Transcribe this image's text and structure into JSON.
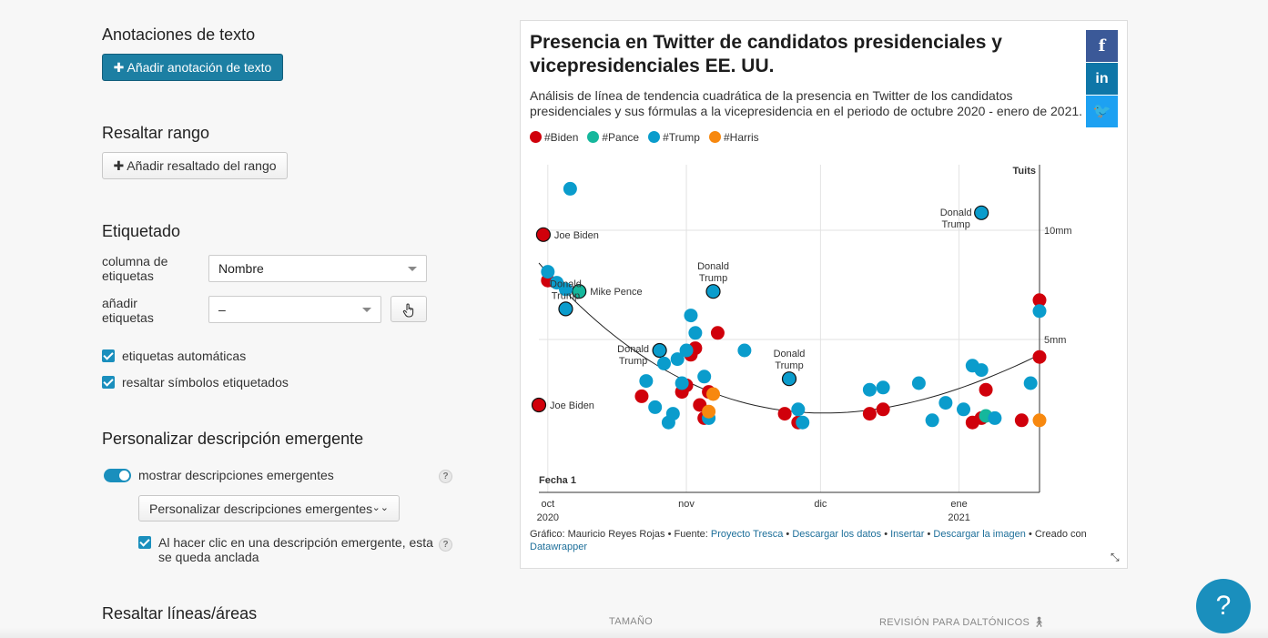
{
  "sections": {
    "text_annotations": {
      "title": "Anotaciones de texto",
      "add_button": "✚ Añadir anotación de texto"
    },
    "highlight_range": {
      "title": "Resaltar rango",
      "add_button": "✚ Añadir resaltado del rango"
    },
    "labeling": {
      "title": "Etiquetado",
      "label_column_label": "columna de etiquetas",
      "label_column_value": "Nombre",
      "add_labels_label": "añadir etiquetas",
      "add_labels_value": "–",
      "auto_labels": "etiquetas automáticas",
      "highlight_labeled": "resaltar símbolos etiquetados"
    },
    "tooltips": {
      "title": "Personalizar descripción emergente",
      "show_tooltips": "mostrar descripciones emergentes",
      "customize_button": "Personalizar descripciones emergentes",
      "sticky_label": "Al hacer clic en una descripción emergente, esta se queda anclada",
      "help": "?"
    },
    "highlight_lines": {
      "title": "Resaltar líneas/áreas"
    },
    "size_label": "TAMAÑO",
    "colorblind_label": "REVISIÓN PARA DALTÓNICOS"
  },
  "chart": {
    "title": "Presencia en Twitter de candidatos presidenciales y vicepresidenciales EE. UU.",
    "description": "Análisis de línea de tendencia cuadrática de la presencia en Twitter de los candidatos presidenciales y sus fórmulas a la vicepresidencia en el periodo de octubre 2020 - enero de 2021.",
    "social": {
      "facebook": "f",
      "linkedin": "in",
      "twitter": "🐦"
    },
    "footer": {
      "prefix": "Gráfico: Mauricio Reyes Rojas • Fuente: ",
      "source_link": "Proyecto Tresca",
      "download_data": "Descargar los datos",
      "embed": "Insertar",
      "download_image": "Descargar la imagen",
      "created_with": "Creado con",
      "datawrapper": "Datawrapper"
    }
  },
  "chart_data": {
    "type": "scatter",
    "xlabel": "Fecha 1",
    "ylabel": "Tuits",
    "x_ticks": [
      {
        "label": "oct",
        "sub": "2020",
        "date": "2020-10-01"
      },
      {
        "label": "nov",
        "sub": "",
        "date": "2020-11-01"
      },
      {
        "label": "dic",
        "sub": "",
        "date": "2020-12-01"
      },
      {
        "label": "ene",
        "sub": "2021",
        "date": "2021-01-01"
      }
    ],
    "y_ticks": [
      {
        "label": "5mm",
        "value": 5
      },
      {
        "label": "10mm",
        "value": 10
      }
    ],
    "xlim": [
      "2020-09-29",
      "2021-01-19"
    ],
    "ylim": [
      -2,
      13
    ],
    "legend": [
      {
        "name": "#Biden",
        "color": "#d0000b"
      },
      {
        "name": "#Pance",
        "color": "#15b79c"
      },
      {
        "name": "#Trump",
        "color": "#0a9ccc"
      },
      {
        "name": "#Harris",
        "color": "#f7880f"
      }
    ],
    "series": [
      {
        "name": "#Biden",
        "color": "#d0000b",
        "points": [
          {
            "x": "2020-09-30",
            "y": 9.8,
            "label": "Joe Biden"
          },
          {
            "x": "2020-09-29",
            "y": 2.0,
            "label": "Joe Biden"
          },
          {
            "x": "2020-10-01",
            "y": 7.7
          },
          {
            "x": "2020-10-22",
            "y": 2.4
          },
          {
            "x": "2020-10-31",
            "y": 2.6
          },
          {
            "x": "2020-11-01",
            "y": 2.9
          },
          {
            "x": "2020-11-02",
            "y": 4.3
          },
          {
            "x": "2020-11-03",
            "y": 4.6
          },
          {
            "x": "2020-11-04",
            "y": 2.0
          },
          {
            "x": "2020-11-05",
            "y": 1.4
          },
          {
            "x": "2020-11-06",
            "y": 2.6
          },
          {
            "x": "2020-11-08",
            "y": 5.3
          },
          {
            "x": "2020-11-23",
            "y": 1.6
          },
          {
            "x": "2020-11-26",
            "y": 1.2
          },
          {
            "x": "2020-12-12",
            "y": 1.6
          },
          {
            "x": "2020-12-15",
            "y": 1.8
          },
          {
            "x": "2021-01-04",
            "y": 1.2
          },
          {
            "x": "2021-01-06",
            "y": 1.4
          },
          {
            "x": "2021-01-07",
            "y": 2.7
          },
          {
            "x": "2021-01-15",
            "y": 1.3
          },
          {
            "x": "2021-01-19",
            "y": 6.8
          },
          {
            "x": "2021-01-19",
            "y": 4.2
          }
        ]
      },
      {
        "name": "#Pance",
        "color": "#15b79c",
        "points": [
          {
            "x": "2020-10-08",
            "y": 7.2,
            "label": "Mike Pence"
          },
          {
            "x": "2021-01-07",
            "y": 1.5
          }
        ]
      },
      {
        "name": "#Trump",
        "color": "#0a9ccc",
        "points": [
          {
            "x": "2020-10-05",
            "y": 6.4,
            "label": "Donald Trump"
          },
          {
            "x": "2020-10-26",
            "y": 4.5,
            "label": "Donald Trump"
          },
          {
            "x": "2020-11-07",
            "y": 7.2,
            "label": "Donald Trump"
          },
          {
            "x": "2020-11-24",
            "y": 3.2,
            "label": "Donald Trump"
          },
          {
            "x": "2021-01-06",
            "y": 10.8,
            "label": "Donald Trump"
          },
          {
            "x": "2020-10-06",
            "y": 11.9
          },
          {
            "x": "2020-10-01",
            "y": 8.1
          },
          {
            "x": "2020-10-03",
            "y": 7.6
          },
          {
            "x": "2020-10-05",
            "y": 7.3
          },
          {
            "x": "2020-10-23",
            "y": 3.1
          },
          {
            "x": "2020-10-25",
            "y": 1.9
          },
          {
            "x": "2020-10-27",
            "y": 3.9
          },
          {
            "x": "2020-10-28",
            "y": 1.2
          },
          {
            "x": "2020-10-29",
            "y": 1.6
          },
          {
            "x": "2020-10-30",
            "y": 4.1
          },
          {
            "x": "2020-10-31",
            "y": 3.0
          },
          {
            "x": "2020-11-01",
            "y": 4.5
          },
          {
            "x": "2020-11-02",
            "y": 6.1
          },
          {
            "x": "2020-11-03",
            "y": 5.3
          },
          {
            "x": "2020-11-05",
            "y": 3.3
          },
          {
            "x": "2020-11-06",
            "y": 1.4
          },
          {
            "x": "2020-11-14",
            "y": 4.5
          },
          {
            "x": "2020-11-26",
            "y": 1.8
          },
          {
            "x": "2020-11-27",
            "y": 1.2
          },
          {
            "x": "2020-12-12",
            "y": 2.7
          },
          {
            "x": "2020-12-15",
            "y": 2.8
          },
          {
            "x": "2020-12-23",
            "y": 3.0
          },
          {
            "x": "2020-12-26",
            "y": 1.3
          },
          {
            "x": "2020-12-29",
            "y": 2.1
          },
          {
            "x": "2021-01-02",
            "y": 1.8
          },
          {
            "x": "2021-01-04",
            "y": 3.8
          },
          {
            "x": "2021-01-06",
            "y": 3.6
          },
          {
            "x": "2021-01-09",
            "y": 1.4
          },
          {
            "x": "2021-01-17",
            "y": 3.0
          },
          {
            "x": "2021-01-19",
            "y": 6.3
          }
        ]
      },
      {
        "name": "#Harris",
        "color": "#f7880f",
        "points": [
          {
            "x": "2020-11-07",
            "y": 2.5
          },
          {
            "x": "2020-11-06",
            "y": 1.7
          },
          {
            "x": "2021-01-19",
            "y": 1.3
          }
        ]
      }
    ],
    "trendline": {
      "type": "quadratic",
      "x": [
        "2020-09-29",
        "2020-10-29",
        "2020-12-09",
        "2021-01-19"
      ],
      "y": [
        8.5,
        3.4,
        1.7,
        4.3
      ]
    }
  }
}
